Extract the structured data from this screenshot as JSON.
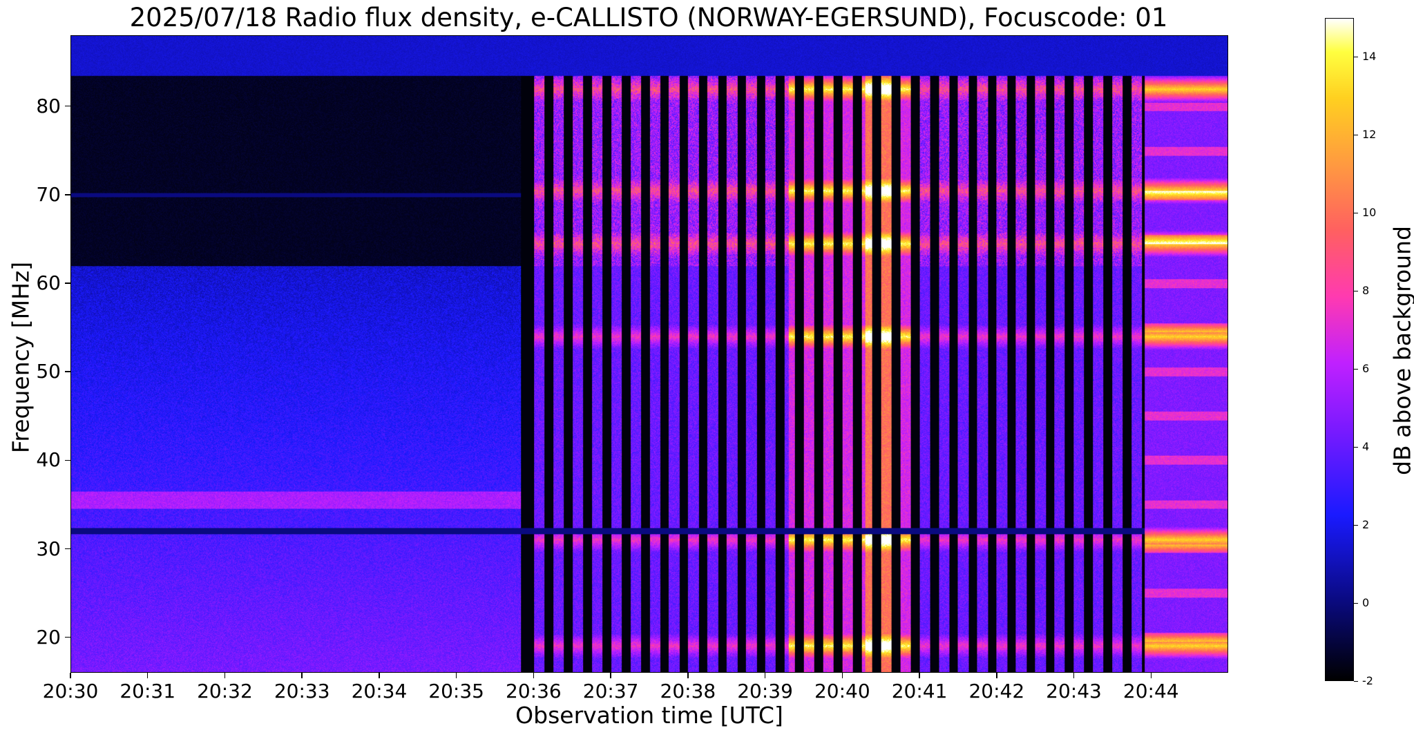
{
  "chart_data": {
    "type": "heatmap",
    "title": "2025/07/18  Radio flux density, e-CALLISTO (NORWAY-EGERSUND), Focuscode: 01",
    "xlabel": "Observation time [UTC]",
    "ylabel": "Frequency [MHz]",
    "x_ticks": [
      "20:30",
      "20:31",
      "20:32",
      "20:33",
      "20:34",
      "20:35",
      "20:36",
      "20:37",
      "20:38",
      "20:39",
      "20:40",
      "20:41",
      "20:42",
      "20:43",
      "20:44"
    ],
    "x_range": [
      "20:30:00",
      "20:45:00"
    ],
    "y_ticks": [
      20,
      30,
      40,
      50,
      60,
      70,
      80
    ],
    "ylim": [
      16,
      88
    ],
    "colorbar": {
      "label": "dB above background",
      "ticks": [
        -2,
        0,
        2,
        4,
        6,
        8,
        10,
        12,
        14
      ],
      "range": [
        -2,
        15
      ]
    },
    "colormap": "gnuplot2",
    "features": {
      "quiet_period": [
        "20:30",
        "20:35:50"
      ],
      "burst_onset": "20:35:50",
      "intermittent_bursts": [
        "20:36",
        "20:43:50"
      ],
      "continuous_emission_from": "20:43:55",
      "strong_bands_mhz": [
        82,
        70.5,
        64.5,
        54,
        31,
        19
      ],
      "persistent_lines_mhz": [
        32,
        70
      ]
    }
  },
  "colors": {
    "background": "#000000",
    "low": "#1a1aff",
    "mid": "#c020ff",
    "high": "#ffff40",
    "max": "#ffffff"
  }
}
